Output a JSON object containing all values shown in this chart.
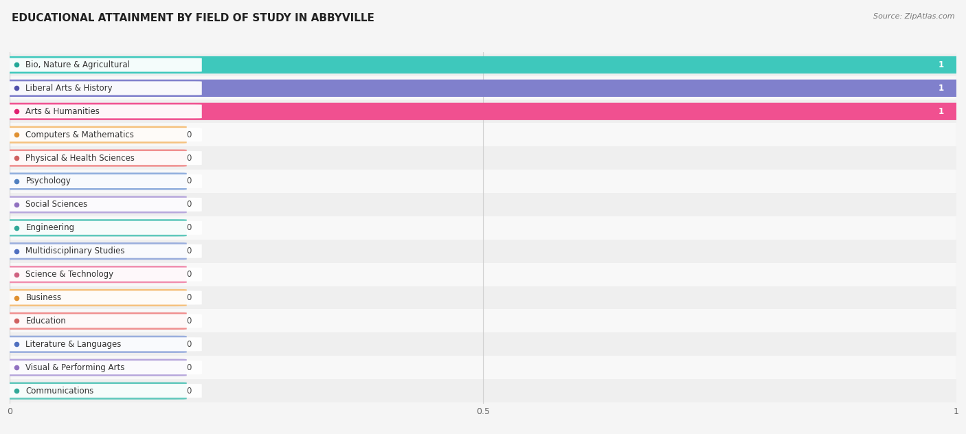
{
  "title": "EDUCATIONAL ATTAINMENT BY FIELD OF STUDY IN ABBYVILLE",
  "source": "Source: ZipAtlas.com",
  "categories": [
    "Bio, Nature & Agricultural",
    "Liberal Arts & History",
    "Arts & Humanities",
    "Computers & Mathematics",
    "Physical & Health Sciences",
    "Psychology",
    "Social Sciences",
    "Engineering",
    "Multidisciplinary Studies",
    "Science & Technology",
    "Business",
    "Education",
    "Literature & Languages",
    "Visual & Performing Arts",
    "Communications"
  ],
  "values": [
    1,
    1,
    1,
    0,
    0,
    0,
    0,
    0,
    0,
    0,
    0,
    0,
    0,
    0,
    0
  ],
  "bar_colors": [
    "#3EC8BC",
    "#8080CC",
    "#F05090",
    "#F5C280",
    "#F09090",
    "#90AEDD",
    "#B8A8DC",
    "#60C8BC",
    "#9AAEDD",
    "#F090B0",
    "#F5C280",
    "#F09090",
    "#9AAEDD",
    "#B8A8DC",
    "#60C8BC"
  ],
  "dot_colors": [
    "#20A898",
    "#5050AA",
    "#E02070",
    "#E09030",
    "#D06060",
    "#5080C0",
    "#9070C0",
    "#30A898",
    "#5070C0",
    "#D06080",
    "#E09030",
    "#D06060",
    "#5070C0",
    "#9070C0",
    "#30A898"
  ],
  "xlim": [
    0,
    1
  ],
  "xticks": [
    0,
    0.5,
    1
  ],
  "bg_color": "#f5f5f5",
  "row_colors": [
    "#efefef",
    "#f8f8f8"
  ],
  "grid_color": "#d0d0d0",
  "title_fontsize": 11,
  "label_fontsize": 8.5,
  "value_fontsize": 8.5,
  "bar_height": 0.72,
  "short_bar_width": 0.175
}
